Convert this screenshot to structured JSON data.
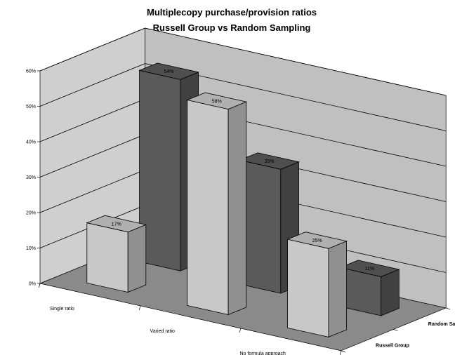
{
  "chart_data": {
    "type": "bar",
    "title_line1": "Multiplecopy purchase/provision ratios",
    "title_line2": "Russell Group vs Random Sampling",
    "categories": [
      "Single ratio",
      "Varied ratio",
      "No formula approach"
    ],
    "series": [
      {
        "name": "Russell Group",
        "values": [
          17,
          58,
          25
        ],
        "color": "#c8c8c8"
      },
      {
        "name": "Random Sampling",
        "values": [
          54,
          35,
          11
        ],
        "color": "#5a5a5a"
      }
    ],
    "yticks": [
      "0%",
      "10%",
      "20%",
      "30%",
      "40%",
      "50%",
      "60%"
    ],
    "ylim": [
      0,
      60
    ],
    "colors": {
      "wall": "#c0c0c0",
      "floor": "#8a8a8a"
    }
  }
}
